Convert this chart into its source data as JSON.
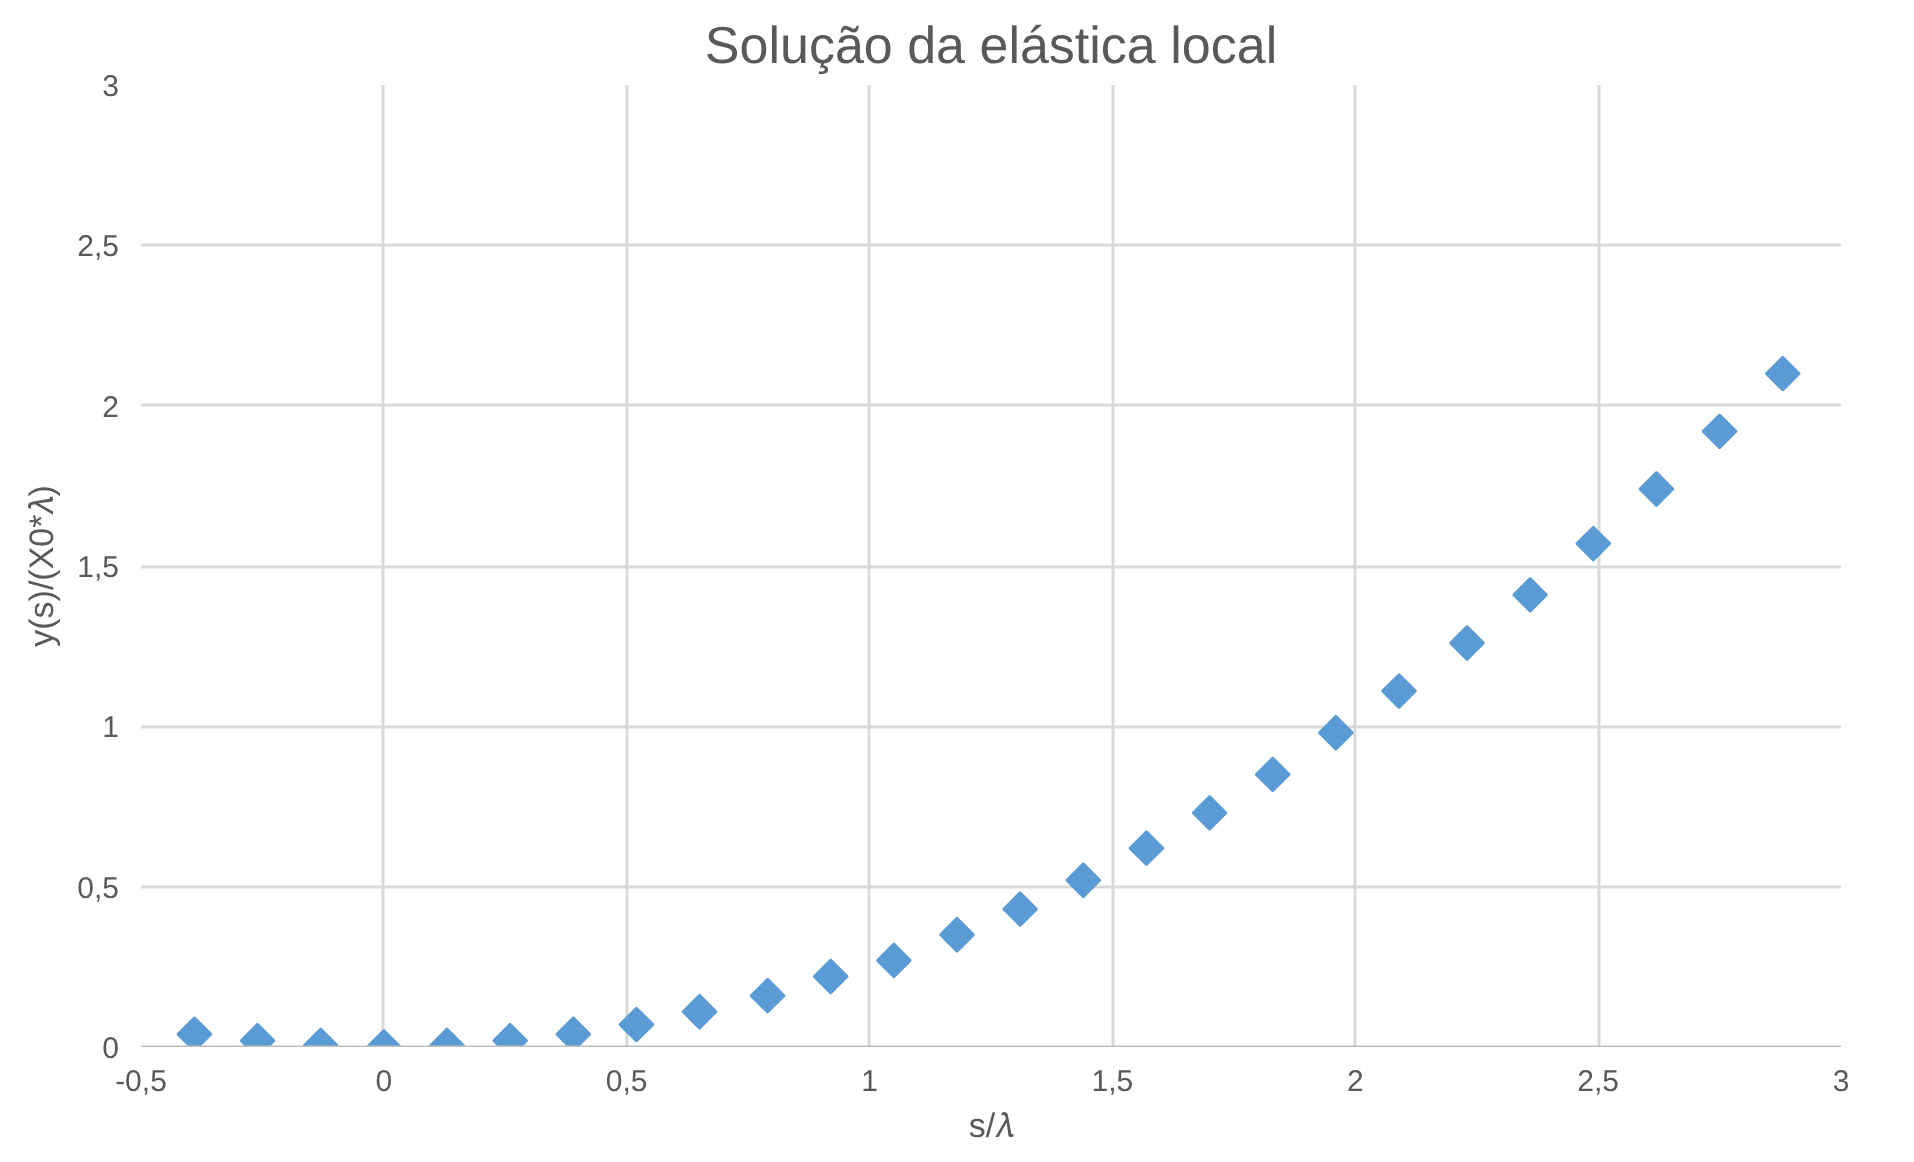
{
  "chart_data": {
    "type": "scatter",
    "title": "Solução da elástica local",
    "xlabel": "s/𝜆",
    "ylabel": "y(s)/(X0*𝜆)",
    "x": [
      -0.39,
      -0.26,
      -0.13,
      0,
      0.13,
      0.26,
      0.39,
      0.52,
      0.65,
      0.79,
      0.92,
      1.05,
      1.18,
      1.31,
      1.44,
      1.57,
      1.7,
      1.83,
      1.96,
      2.09,
      2.23,
      2.36,
      2.49,
      2.62,
      2.75,
      2.88
    ],
    "series": [
      {
        "color": "#5b9bd5",
        "values": [
          0.04,
          0.02,
          0.005,
          0,
          0.005,
          0.02,
          0.04,
          0.07,
          0.11,
          0.16,
          0.22,
          0.27,
          0.35,
          0.43,
          0.52,
          0.62,
          0.73,
          0.85,
          0.98,
          1.11,
          1.26,
          1.41,
          1.57,
          1.74,
          1.92,
          2.1
        ]
      }
    ],
    "marker": "diamond",
    "grid": true,
    "xlim": [
      -0.5,
      3
    ],
    "ylim": [
      0,
      3
    ],
    "xticks": [
      {
        "value": -0.5,
        "label": "-0,5"
      },
      0,
      {
        "value": 0.5,
        "label": "0,5"
      },
      1,
      {
        "value": 1.5,
        "label": "1,5"
      },
      2,
      {
        "value": 2.5,
        "label": "2,5"
      },
      3
    ],
    "yticks": [
      0,
      {
        "value": 0.5,
        "label": "0,5"
      },
      1,
      {
        "value": 1.5,
        "label": "1,5"
      },
      2,
      {
        "value": 2.5,
        "label": "2,5"
      },
      3
    ]
  }
}
